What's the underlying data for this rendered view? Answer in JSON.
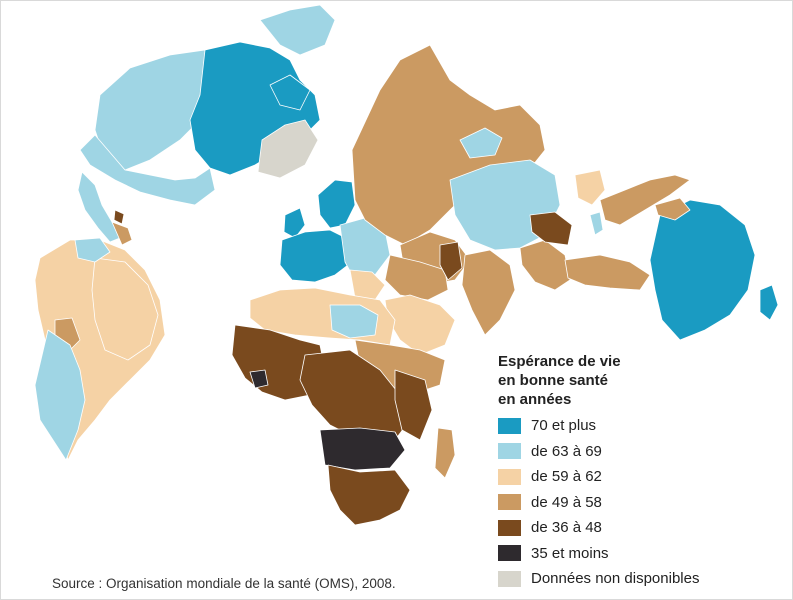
{
  "legend": {
    "title_lines": [
      "Espérance de vie",
      "en bonne santé",
      "en années"
    ],
    "items": [
      {
        "label": "70 et plus",
        "color": "#1a9bc2"
      },
      {
        "label": "de 63 à 69",
        "color": "#9fd5e4"
      },
      {
        "label": "de 59 à 62",
        "color": "#f5d2a5"
      },
      {
        "label": "de 49 à 58",
        "color": "#cb9a62"
      },
      {
        "label": "de 36 à 48",
        "color": "#7a4a1e"
      },
      {
        "label": "35 et moins",
        "color": "#2e2a2e"
      },
      {
        "label": "Données non disponibles",
        "color": "#d7d5cc"
      }
    ]
  },
  "source": "Source : Organisation mondiale de la santé (OMS), 2008.",
  "colors": {
    "border": "#ffffff",
    "background": "#ffffff"
  }
}
